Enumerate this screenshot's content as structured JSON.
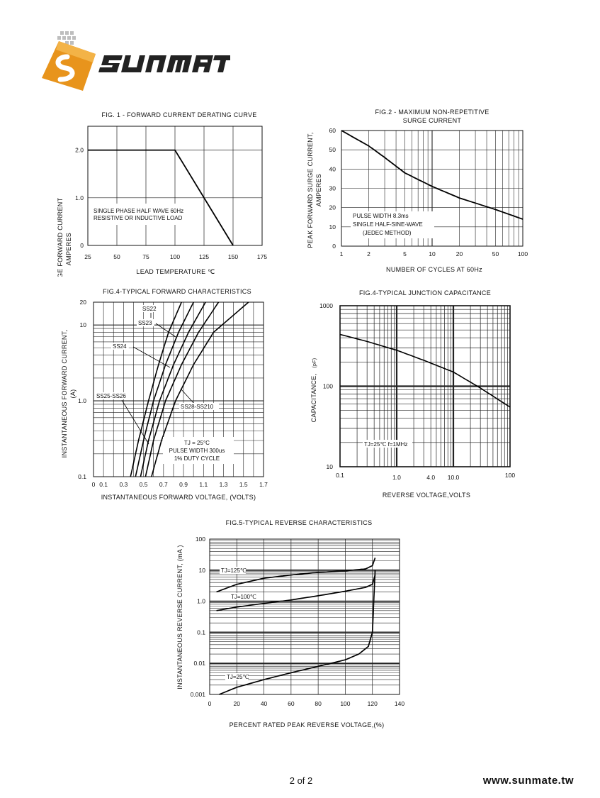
{
  "brand": {
    "name": "SUNMATE",
    "url": "www.sunmate.tw"
  },
  "page": {
    "number": "2 of 2"
  },
  "chart_data": [
    {
      "id": "fig1",
      "type": "line",
      "title": "FIG. 1 - FORWARD  CURRENT  DERATING  CURVE",
      "xlabel": "LEAD TEMPERATURE  ℃",
      "ylabel_lines": [
        "AVERAGE FORWARD CURRENT",
        "AMPERES"
      ],
      "xlim": [
        25,
        175
      ],
      "ylim": [
        0,
        2.5
      ],
      "x_ticks": [
        "25",
        "50",
        "75",
        "100",
        "125",
        "150",
        "175"
      ],
      "y_ticks": [
        "0",
        "1.0",
        "2.0"
      ],
      "grid": true,
      "annotation_lines": [
        "SINGLE PHASE HALF WAVE 60Hz",
        "RESISTIVE OR  INDUCTIVE LOAD"
      ],
      "series": [
        {
          "x": [
            25,
            100,
            150
          ],
          "y": [
            2.0,
            2.0,
            0
          ]
        }
      ]
    },
    {
      "id": "fig2",
      "type": "line",
      "title_lines": [
        "FIG.2 - MAXIMUM  NON-REPETITIVE",
        "SURGE  CURRENT"
      ],
      "xlabel": "NUMBER OF CYCLES AT 60Hz",
      "ylabel_lines": [
        "PEAK FORWARD SURGE CURRENT,",
        "AMPERES"
      ],
      "x_scale": "log",
      "xlim": [
        1,
        100
      ],
      "ylim": [
        0,
        60
      ],
      "x_ticks": [
        "1",
        "2",
        "5",
        "10",
        "20",
        "50",
        "100"
      ],
      "y_ticks": [
        "0",
        "10",
        "20",
        "30",
        "40",
        "50",
        "60"
      ],
      "grid": true,
      "annotation_lines": [
        "PULSE WIDTH 8.3ms",
        "SINGLE HALF-SINE-WAVE",
        "(JEDEC METHOD)"
      ],
      "series": [
        {
          "x": [
            1,
            2,
            3,
            5,
            10,
            20,
            50,
            100
          ],
          "y": [
            60,
            52,
            46,
            38,
            31,
            25,
            19,
            14
          ]
        }
      ]
    },
    {
      "id": "fig3",
      "type": "line",
      "title": "FIG.4-TYPICAL FORWARD CHARACTERISTICS",
      "xlabel": "INSTANTANEOUS FORWARD VOLTAGE, (VOLTS)",
      "ylabel_lines": [
        "INSTANTANEOUS FORWARD CURRENT,",
        "(A)"
      ],
      "y_scale": "log",
      "xlim": [
        0,
        1.7
      ],
      "ylim": [
        0.1,
        20
      ],
      "x_ticks": [
        "0",
        "0.1",
        "0.3",
        "0.5",
        "0.7",
        "0.9",
        "1.1",
        "1.3",
        "1.5",
        "1.7"
      ],
      "y_ticks": [
        "0.1",
        "1.0",
        "10",
        "20"
      ],
      "grid": true,
      "annotation_lines": [
        "TJ = 25°C",
        "PULSE WIDTH 300us",
        "1% DUTY CYCLE"
      ],
      "series": [
        {
          "name": "SS22",
          "x": [
            0.37,
            0.45,
            0.55,
            0.65,
            0.75,
            0.88
          ],
          "y": [
            0.1,
            0.3,
            1,
            3,
            8,
            20
          ]
        },
        {
          "name": "SS23",
          "x": [
            0.42,
            0.5,
            0.6,
            0.72,
            0.85,
            1.0
          ],
          "y": [
            0.1,
            0.3,
            1,
            3,
            8,
            20
          ]
        },
        {
          "name": "SS24",
          "x": [
            0.47,
            0.55,
            0.66,
            0.8,
            0.95,
            1.12
          ],
          "y": [
            0.1,
            0.3,
            1,
            3,
            8,
            20
          ]
        },
        {
          "name": "SS25-SS26",
          "x": [
            0.52,
            0.6,
            0.72,
            0.88,
            1.05,
            1.25
          ],
          "y": [
            0.1,
            0.3,
            1,
            3,
            8,
            20
          ]
        },
        {
          "name": "SS28-SS210",
          "x": [
            0.58,
            0.68,
            0.82,
            1.0,
            1.2,
            1.55
          ],
          "y": [
            0.1,
            0.3,
            1,
            3,
            8,
            20
          ]
        }
      ]
    },
    {
      "id": "fig4",
      "type": "line",
      "title": "FIG.4-TYPICAL JUNCTION CAPACITANCE",
      "xlabel": "REVERSE VOLTAGE,VOLTS",
      "ylabel_text": "CAPACITANCE,",
      "ylabel_unit": "(pF)",
      "x_scale": "log",
      "y_scale": "log",
      "xlim": [
        0.1,
        100
      ],
      "ylim": [
        10,
        1000
      ],
      "x_ticks": [
        "0.1",
        "1.0",
        "4.0",
        "10.0",
        "100"
      ],
      "y_ticks": [
        "10",
        "100",
        "1000"
      ],
      "grid": true,
      "annotation_lines": [
        "TJ=25℃  f=1MHz"
      ],
      "series": [
        {
          "x": [
            0.1,
            0.3,
            1,
            3,
            10,
            30,
            100
          ],
          "y": [
            440,
            360,
            280,
            210,
            150,
            95,
            55
          ]
        }
      ]
    },
    {
      "id": "fig5",
      "type": "line",
      "title": "FIG.5-TYPICAL REVERSE CHARACTERISTICS",
      "xlabel": "PERCENT RATED PEAK REVERSE VOLTAGE,(%)",
      "ylabel": "INSTANTANEOUS REVERSE CURRENT, (mA )",
      "y_scale": "log",
      "xlim": [
        0,
        140
      ],
      "ylim": [
        0.001,
        100
      ],
      "x_ticks": [
        "0",
        "20",
        "40",
        "60",
        "80",
        "100",
        "120",
        "140"
      ],
      "y_ticks": [
        "0.001",
        "0.01",
        "0.1",
        "1.0",
        "10",
        "100"
      ],
      "grid": true,
      "series": [
        {
          "name": "TJ=125℃",
          "x": [
            5,
            20,
            40,
            60,
            80,
            100,
            115,
            120,
            122
          ],
          "y": [
            2,
            3.5,
            5.5,
            7,
            8.5,
            9.5,
            11,
            14,
            25
          ]
        },
        {
          "name": "TJ=100℃",
          "x": [
            5,
            20,
            40,
            60,
            80,
            100,
            115,
            120,
            122
          ],
          "y": [
            0.5,
            0.65,
            0.85,
            1.1,
            1.5,
            2.1,
            2.8,
            3.5,
            7
          ]
        },
        {
          "name": "TJ=25℃",
          "x": [
            7,
            20,
            40,
            60,
            80,
            100,
            110,
            117,
            120,
            121,
            122
          ],
          "y": [
            0.001,
            0.0017,
            0.003,
            0.005,
            0.008,
            0.013,
            0.02,
            0.035,
            0.1,
            1,
            10
          ]
        }
      ]
    }
  ]
}
